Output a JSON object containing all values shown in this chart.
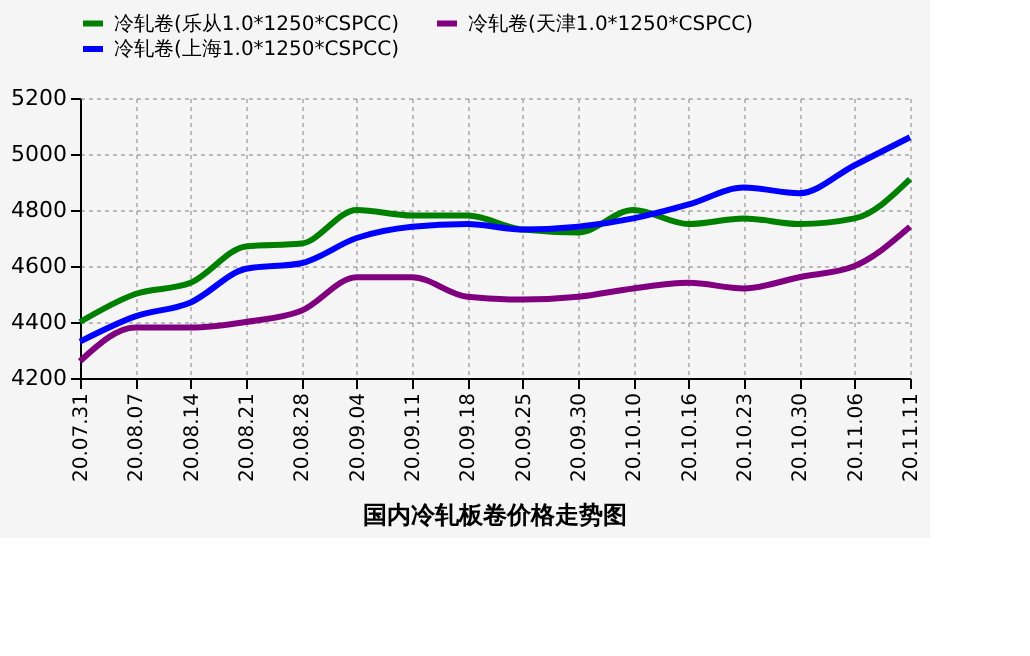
{
  "chart_data": {
    "type": "line",
    "title": "国内冷轧板卷价格走势图",
    "categories": [
      "20.07.31",
      "20.08.07",
      "20.08.14",
      "20.08.21",
      "20.08.28",
      "20.09.04",
      "20.09.11",
      "20.09.18",
      "20.09.25",
      "20.09.30",
      "20.10.10",
      "20.10.16",
      "20.10.23",
      "20.10.30",
      "20.11.06",
      "20.11.11"
    ],
    "series": [
      {
        "name": "冷轧卷(乐从1.0*1250*CSPCC)",
        "color": "#008000",
        "values": [
          4400,
          4500,
          4540,
          4670,
          4680,
          4800,
          4780,
          4780,
          4730,
          4720,
          4800,
          4750,
          4770,
          4750,
          4770,
          4910
        ]
      },
      {
        "name": "冷轧卷(天津1.0*1250*CSPCC)",
        "color": "#800080",
        "values": [
          4260,
          4380,
          4380,
          4400,
          4440,
          4560,
          4560,
          4490,
          4480,
          4490,
          4520,
          4540,
          4520,
          4560,
          4600,
          4740
        ]
      },
      {
        "name": "冷轧卷(上海1.0*1250*CSPCC)",
        "color": "#0000ff",
        "values": [
          4330,
          4420,
          4470,
          4590,
          4610,
          4700,
          4740,
          4750,
          4730,
          4740,
          4770,
          4820,
          4880,
          4860,
          4960,
          5060
        ]
      }
    ],
    "ylim": [
      4200,
      5200
    ],
    "yticks": [
      4200,
      4400,
      4600,
      4800,
      5000,
      5200
    ],
    "grid": true,
    "legend": "top",
    "marker": "none",
    "line_style": "solid"
  }
}
